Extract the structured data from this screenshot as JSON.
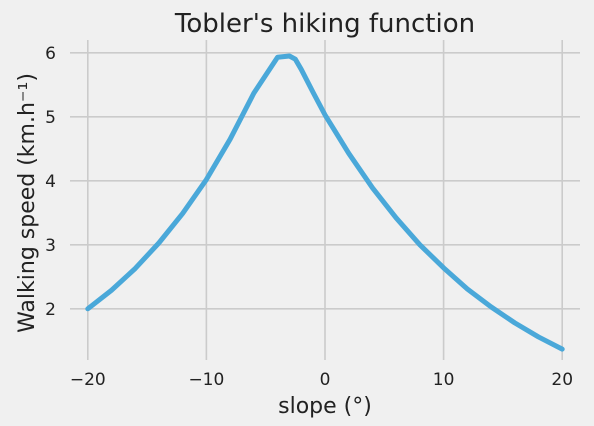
{
  "chart_data": {
    "type": "line",
    "title": "Tobler's hiking function",
    "xlabel": "slope (°)",
    "ylabel": "Walking speed (km.h⁻¹)",
    "xlim": [
      -21.5,
      21.5
    ],
    "ylim": [
      1.2,
      6.2
    ],
    "xticks": [
      -20,
      -10,
      0,
      10,
      20
    ],
    "xtick_labels": [
      "−20",
      "−10",
      "0",
      "10",
      "20"
    ],
    "yticks": [
      2,
      3,
      4,
      5,
      6
    ],
    "ytick_labels": [
      "2",
      "3",
      "4",
      "5",
      "6"
    ],
    "grid": true,
    "series": [
      {
        "color": "#4aa8d9",
        "x": [
          -20,
          -18,
          -16,
          -14,
          -12,
          -10,
          -8,
          -6,
          -4,
          -3,
          -2.5,
          -2,
          -1,
          0,
          2,
          4,
          6,
          8,
          10,
          12,
          14,
          16,
          18,
          20
        ],
        "y": [
          2.0,
          2.29,
          2.63,
          3.03,
          3.49,
          4.02,
          4.65,
          5.37,
          5.93,
          5.95,
          5.9,
          5.74,
          5.38,
          5.03,
          4.43,
          3.89,
          3.42,
          3.0,
          2.64,
          2.31,
          2.03,
          1.78,
          1.56,
          1.37
        ]
      }
    ]
  }
}
